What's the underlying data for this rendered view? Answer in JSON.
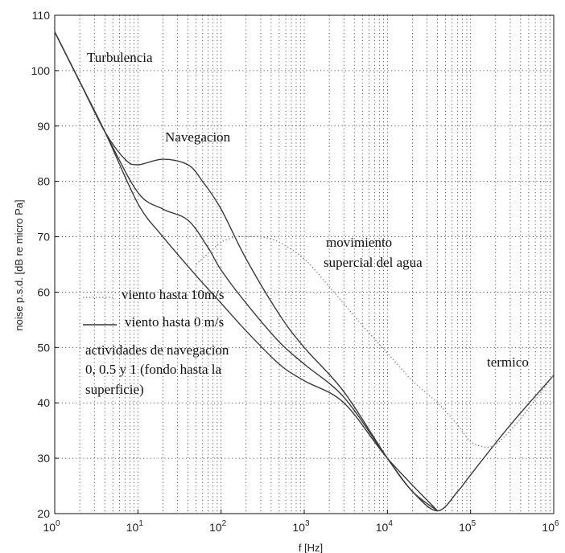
{
  "chart_data": {
    "type": "line",
    "xlabel": "f [Hz]",
    "ylabel": "noise p.s.d. [dB re micro Pa]",
    "xscale": "log",
    "xlim": [
      1,
      1000000
    ],
    "ylim": [
      20,
      110
    ],
    "grid": true,
    "x_tick_labels": [
      {
        "base": "10",
        "exp": "0"
      },
      {
        "base": "10",
        "exp": "1"
      },
      {
        "base": "10",
        "exp": "2"
      },
      {
        "base": "10",
        "exp": "3"
      },
      {
        "base": "10",
        "exp": "4"
      },
      {
        "base": "10",
        "exp": "5"
      },
      {
        "base": "10",
        "exp": "6"
      }
    ],
    "y_tick_labels": [
      "110",
      "100",
      "90",
      "80",
      "70",
      "60",
      "50",
      "40",
      "30",
      "20"
    ],
    "annotations": {
      "turbulencia": "Turbulencia",
      "navegacion": "Navegacion",
      "mov1": "movimiento",
      "mov2": "supercial del agua",
      "termico": "termico",
      "leg1": "viento hasta 10m/s",
      "leg2": "viento hasta 0 m/s",
      "nav1": "actividades de navegacion",
      "nav2": "0, 0.5 y 1 (fondo hasta la",
      "nav3": "superficie)"
    },
    "series": [
      {
        "style": "solid",
        "x": [
          1,
          2,
          4,
          7,
          10,
          20,
          40,
          60,
          100,
          200,
          500,
          1000,
          3000,
          10000,
          20000,
          40000,
          70000,
          100000,
          300000,
          1000000
        ],
        "y": [
          107,
          98,
          89,
          84,
          83,
          84,
          83,
          80,
          75,
          66,
          56,
          50,
          42,
          30,
          24,
          20.5,
          24,
          27,
          36,
          45
        ]
      },
      {
        "style": "solid",
        "x": [
          1,
          2,
          4,
          10,
          20,
          40,
          70,
          100,
          200,
          500,
          1000,
          3000,
          10000,
          20000,
          40000
        ],
        "y": [
          107,
          98,
          89,
          78,
          75,
          73,
          68,
          64,
          58,
          51,
          47,
          41,
          30,
          24,
          20.5
        ]
      },
      {
        "style": "solid",
        "x": [
          1,
          2,
          4,
          10,
          20,
          50,
          100,
          200,
          500,
          1000,
          3000,
          10000,
          40000
        ],
        "y": [
          107,
          98,
          89,
          76,
          70,
          63,
          58,
          53,
          47,
          44,
          40,
          30,
          20.5
        ]
      },
      {
        "style": "dotted",
        "x": [
          50,
          70,
          100,
          150,
          200,
          300,
          500,
          1000,
          2000,
          5000,
          10000,
          20000,
          40000,
          70000,
          100000,
          150000,
          200000,
          300000,
          500000,
          1000000
        ],
        "y": [
          65,
          67,
          69,
          70,
          70,
          70,
          69,
          66,
          61,
          54,
          49,
          44,
          40,
          36,
          33,
          32,
          32.5,
          35,
          39,
          45
        ]
      }
    ]
  }
}
